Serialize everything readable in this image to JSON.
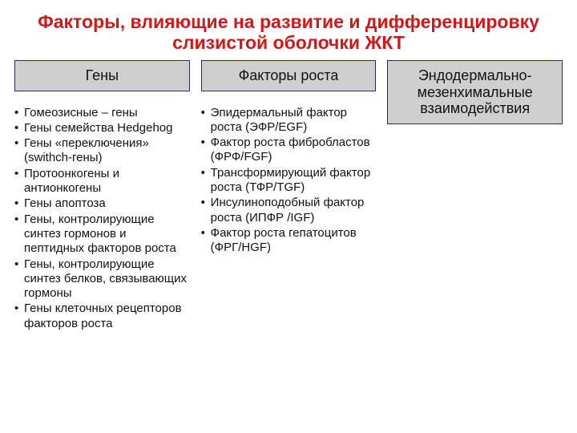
{
  "title_text": "Факторы, влияющие на развитие и дифференцировку слизистой оболочки ЖКТ",
  "title_color": "#cc1a1a",
  "title_fontsize": 23,
  "header_bg": "#cfcfcf",
  "header_fontsize": 18,
  "body_fontsize": 15,
  "columns": [
    {
      "header": "Гены",
      "items": [
        "Гомеозисные – гены",
        "Гены семейства Hedgehog",
        "Гены «переключения» (swithch-гены)",
        "Протоонкогены и антионкогены",
        "Гены апоптоза",
        "Гены, контролирующие синтез гормонов и пептидных факторов роста",
        "Гены, контролирующие синтез белков, связывающих гормоны",
        "Гены клеточных рецепторов факторов роста"
      ]
    },
    {
      "header": "Факторы роста",
      "items": [
        "Эпидермальный фактор роста (ЭФР/EGF)",
        "Фактор роста фибробластов (ФРФ/FGF)",
        "Трансформирующий фактор роста (ТФР/TGF)",
        "Инсулиноподобный фактор роста (ИПФР /IGF)",
        "Фактор роста гепатоцитов (ФРГ/HGF)"
      ]
    },
    {
      "header": "Эндодермально-мезенхимальные взаимодействия",
      "items": []
    }
  ]
}
